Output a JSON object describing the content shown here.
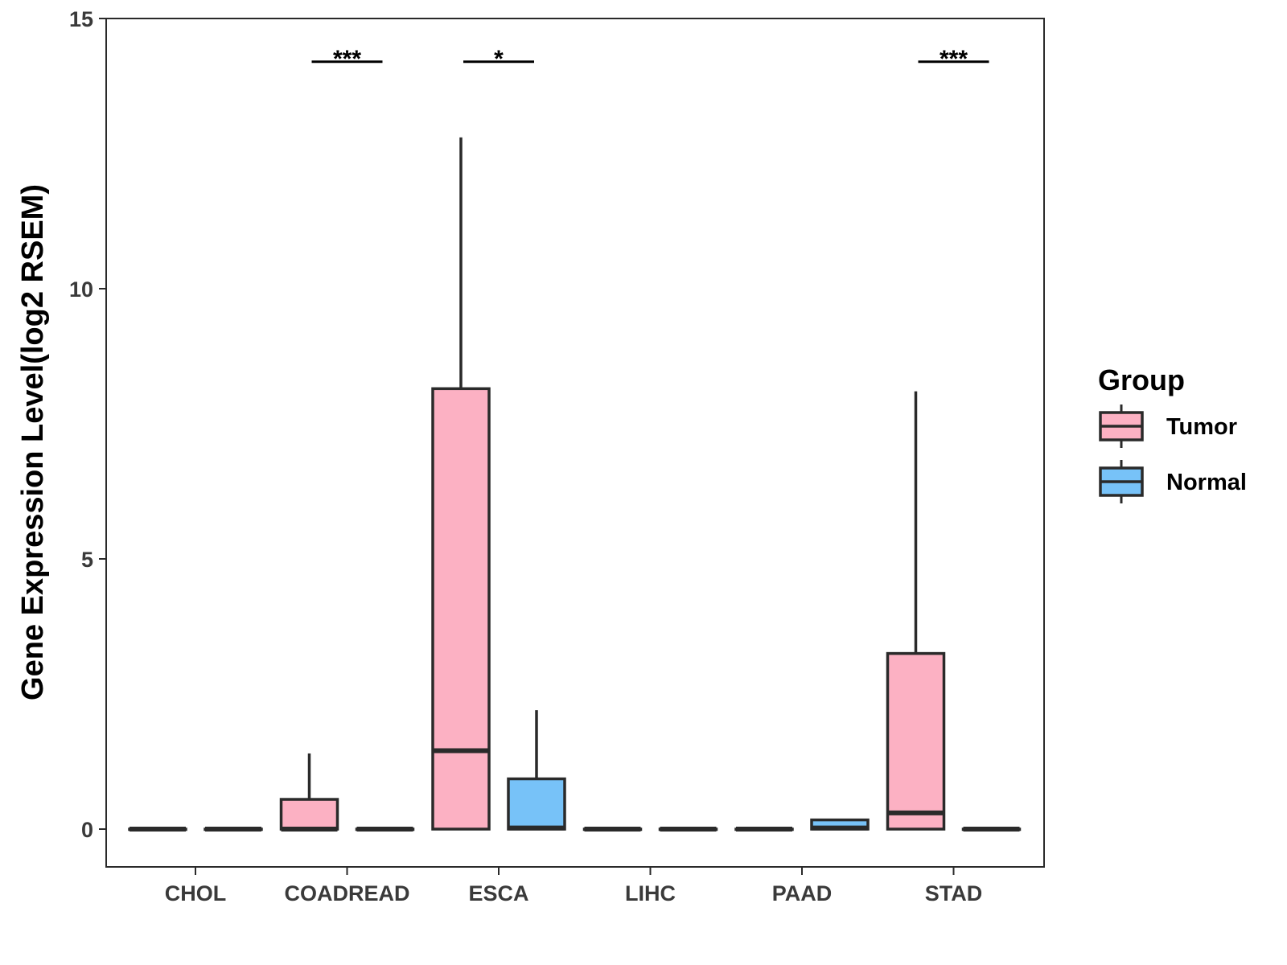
{
  "colors": {
    "tumor": "#fcb1c3",
    "normal": "#77c2f8",
    "stroke": "#2a2a2a"
  },
  "chart_data": {
    "type": "boxplot",
    "ylabel": "Gene Expression Level(log2 RSEM)",
    "xlabel": "",
    "ylim": [
      -0.7,
      15
    ],
    "yticks": [
      0,
      5,
      10,
      15
    ],
    "categories": [
      "CHOL",
      "COADREAD",
      "ESCA",
      "LIHC",
      "PAAD",
      "STAD"
    ],
    "legend": {
      "title": "Group",
      "position": "right"
    },
    "series": [
      {
        "name": "Tumor",
        "color": "#fcb1c3",
        "boxes": [
          {
            "min": 0,
            "q1": 0,
            "median": 0,
            "q3": 0,
            "max": 0
          },
          {
            "min": 0,
            "q1": 0,
            "median": 0,
            "q3": 0.55,
            "max": 1.4
          },
          {
            "min": 0,
            "q1": 0,
            "median": 1.45,
            "q3": 8.15,
            "max": 12.8
          },
          {
            "min": 0,
            "q1": 0,
            "median": 0,
            "q3": 0,
            "max": 0
          },
          {
            "min": 0,
            "q1": 0,
            "median": 0,
            "q3": 0,
            "max": 0
          },
          {
            "min": 0,
            "q1": 0,
            "median": 0.3,
            "q3": 3.25,
            "max": 8.1
          }
        ]
      },
      {
        "name": "Normal",
        "color": "#77c2f8",
        "boxes": [
          {
            "min": 0,
            "q1": 0,
            "median": 0,
            "q3": 0,
            "max": 0
          },
          {
            "min": 0,
            "q1": 0,
            "median": 0,
            "q3": 0,
            "max": 0
          },
          {
            "min": 0,
            "q1": 0,
            "median": 0.02,
            "q3": 0.93,
            "max": 2.2
          },
          {
            "min": 0,
            "q1": 0,
            "median": 0,
            "q3": 0,
            "max": 0
          },
          {
            "min": 0,
            "q1": 0,
            "median": 0.02,
            "q3": 0.17,
            "max": 0.17
          },
          {
            "min": 0,
            "q1": 0,
            "median": 0,
            "q3": 0,
            "max": 0
          }
        ]
      }
    ],
    "significance": [
      {
        "category": "COADREAD",
        "label": "***",
        "y": 14.2
      },
      {
        "category": "ESCA",
        "label": "*",
        "y": 14.2
      },
      {
        "category": "STAD",
        "label": "***",
        "y": 14.2
      }
    ]
  }
}
